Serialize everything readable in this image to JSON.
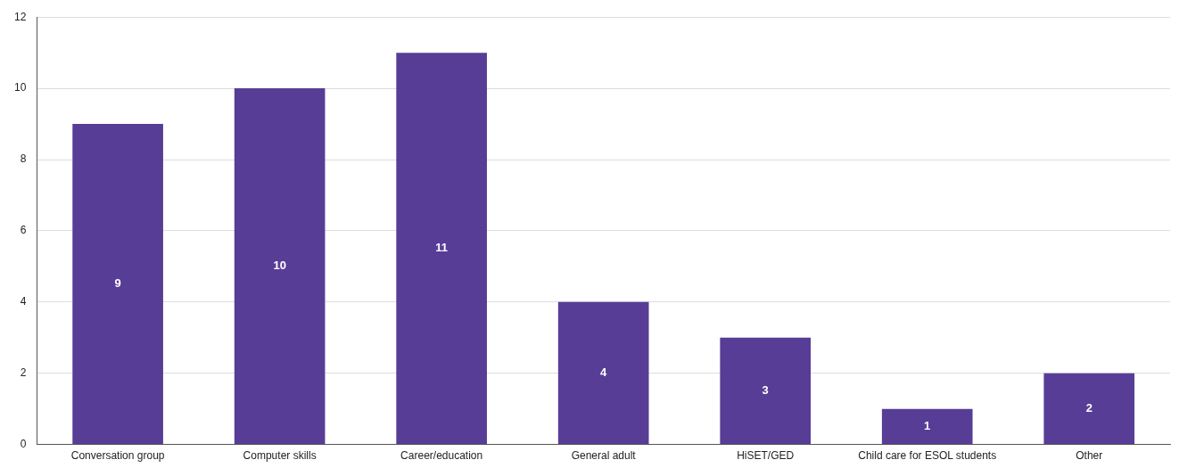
{
  "chart_data": {
    "type": "bar",
    "categories": [
      "Conversation group",
      "Computer skills",
      "Career/education",
      "General adult",
      "HiSET/GED",
      "Child care for ESOL students",
      "Other"
    ],
    "values": [
      9,
      10,
      11,
      4,
      3,
      1,
      2
    ],
    "color": "#573d96",
    "ylim": [
      0,
      12
    ],
    "yticks": [
      0,
      2,
      4,
      6,
      8,
      10,
      12
    ],
    "grid": "y",
    "data_labels": true
  }
}
